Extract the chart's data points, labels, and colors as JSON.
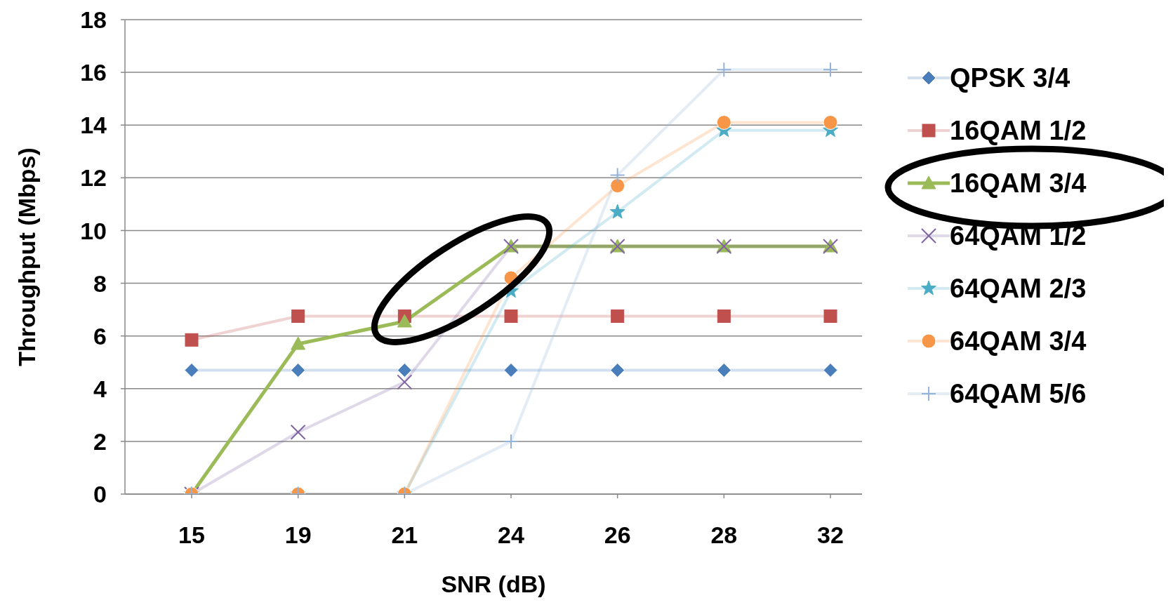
{
  "chart_data": {
    "type": "line",
    "xlabel": "SNR (dB)",
    "ylabel": "Throughput (Mbps)",
    "categories": [
      "15",
      "19",
      "21",
      "24",
      "26",
      "28",
      "32"
    ],
    "ylim": [
      0,
      18
    ],
    "yticks": [
      0,
      2,
      4,
      6,
      8,
      10,
      12,
      14,
      16,
      18
    ],
    "grid": "y",
    "legend": "right",
    "series": [
      {
        "name": "QPSK 3/4",
        "color": "#4a7ebb",
        "marker": "diamond",
        "values": [
          4.7,
          4.7,
          4.7,
          4.7,
          4.7,
          4.7,
          4.7
        ]
      },
      {
        "name": "16QAM 1/2",
        "color": "#c0504d",
        "marker": "square",
        "values": [
          5.85,
          6.75,
          6.75,
          6.75,
          6.75,
          6.75,
          6.75
        ]
      },
      {
        "name": "16QAM 3/4",
        "color": "#9bbb59",
        "marker": "triangle",
        "values": [
          0,
          5.7,
          6.55,
          9.4,
          9.4,
          9.4,
          9.4
        ]
      },
      {
        "name": "64QAM 1/2",
        "color": "#8064a2",
        "marker": "cross",
        "values": [
          0,
          2.35,
          4.25,
          9.4,
          9.4,
          9.4,
          9.4
        ]
      },
      {
        "name": "64QAM 2/3",
        "color": "#4bacc6",
        "marker": "star",
        "values": [
          0,
          0,
          0,
          7.7,
          10.7,
          13.8,
          13.8
        ]
      },
      {
        "name": "64QAM 3/4",
        "color": "#f79646",
        "marker": "circle",
        "values": [
          0,
          0,
          0,
          8.2,
          11.7,
          14.1,
          14.1
        ]
      },
      {
        "name": "64QAM 5/6",
        "color": "#95b3d7",
        "marker": "plus",
        "values": [
          0,
          0,
          0,
          2.0,
          12.1,
          16.1,
          16.1
        ]
      }
    ]
  }
}
